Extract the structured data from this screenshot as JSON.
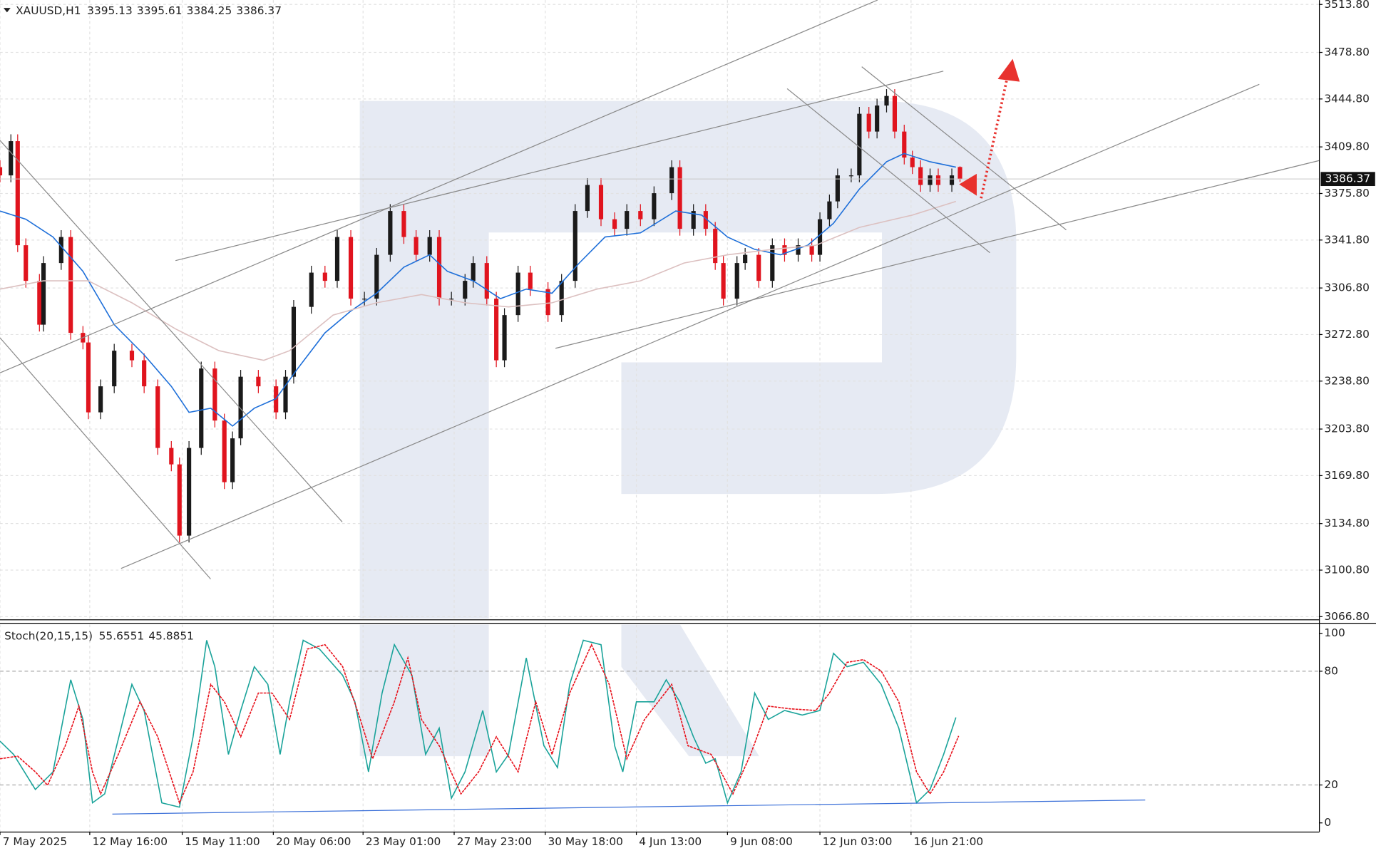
{
  "chart_data": [
    {
      "type": "candlestick",
      "title": "XAUUSD,H1",
      "xlim": [
        0,
        970
      ],
      "ylim": [
        3065.5,
        3517
      ],
      "yticks": [
        {
          "value": 3513.8,
          "label": "3513.80"
        },
        {
          "value": 3478.8,
          "label": "3478.80"
        },
        {
          "value": 3444.8,
          "label": "3444.80"
        },
        {
          "value": 3409.8,
          "label": "3409.80"
        },
        {
          "value": 3375.8,
          "label": "3375.80"
        },
        {
          "value": 3341.8,
          "label": "3341.80"
        },
        {
          "value": 3306.8,
          "label": "3306.80"
        },
        {
          "value": 3272.8,
          "label": "3272.80"
        },
        {
          "value": 3238.8,
          "label": "3238.80"
        },
        {
          "value": 3203.8,
          "label": "3203.80"
        },
        {
          "value": 3169.8,
          "label": "3169.80"
        },
        {
          "value": 3134.8,
          "label": "3134.80"
        },
        {
          "value": 3100.8,
          "label": "3100.80"
        },
        {
          "value": 3066.8,
          "label": "3066.80"
        }
      ],
      "grid": true,
      "up_color": "#1a1a1a",
      "down_color": "#e0141e",
      "x": [
        0,
        8,
        13,
        19,
        29,
        32,
        45,
        52,
        61,
        65,
        74,
        84,
        97,
        106,
        116,
        126,
        132,
        139,
        148,
        158,
        165,
        171,
        177,
        190,
        203,
        210,
        216,
        229,
        239,
        248,
        258,
        268,
        277,
        287,
        297,
        306,
        316,
        323,
        332,
        342,
        348,
        358,
        365,
        371,
        381,
        390,
        403,
        413,
        423,
        432,
        442,
        452,
        461,
        471,
        481,
        494,
        500,
        510,
        519,
        526,
        532,
        542,
        548,
        558,
        568,
        577,
        587,
        597,
        603,
        610,
        616,
        626,
        632,
        639,
        645,
        652,
        658,
        665,
        671,
        677,
        684,
        690,
        700,
        706
      ],
      "open": [
        3395,
        3389,
        3414,
        3338,
        3312,
        3280,
        3325,
        3344,
        3274,
        3267,
        3216,
        3235,
        3261,
        3254,
        3235,
        3190,
        3178,
        3126,
        3190,
        3248,
        3210,
        3165,
        3197,
        3242,
        3235,
        3216,
        3242,
        3293,
        3318,
        3312,
        3344,
        3299,
        3299,
        3331,
        3363,
        3344,
        3331,
        3344,
        3299,
        3299,
        3312,
        3325,
        3299,
        3254,
        3287,
        3318,
        3306,
        3287,
        3312,
        3363,
        3382,
        3357,
        3350,
        3363,
        3357,
        3376,
        3395,
        3350,
        3363,
        3350,
        3325,
        3299,
        3325,
        3331,
        3312,
        3338,
        3331,
        3338,
        3331,
        3357,
        3370,
        3389,
        3389,
        3434,
        3421,
        3440,
        3447,
        3421,
        3402,
        3395,
        3382,
        3389,
        3382,
        3395.13
      ],
      "high": [
        3400,
        3419,
        3419,
        3343,
        3317,
        3330,
        3349,
        3349,
        3279,
        3272,
        3240,
        3266,
        3266,
        3259,
        3240,
        3195,
        3183,
        3195,
        3253,
        3253,
        3215,
        3202,
        3247,
        3247,
        3240,
        3247,
        3298,
        3323,
        3323,
        3349,
        3349,
        3304,
        3336,
        3368,
        3368,
        3349,
        3349,
        3349,
        3304,
        3317,
        3330,
        3330,
        3304,
        3292,
        3323,
        3323,
        3311,
        3317,
        3368,
        3387,
        3387,
        3362,
        3368,
        3368,
        3381,
        3400,
        3400,
        3368,
        3368,
        3355,
        3330,
        3330,
        3336,
        3336,
        3343,
        3343,
        3343,
        3343,
        3362,
        3375,
        3394,
        3394,
        3439,
        3439,
        3445,
        3452,
        3452,
        3426,
        3407,
        3400,
        3394,
        3394,
        3394,
        3395.61
      ],
      "low": [
        3384,
        3384,
        3333,
        3307,
        3275,
        3275,
        3320,
        3269,
        3262,
        3211,
        3211,
        3230,
        3249,
        3230,
        3185,
        3173,
        3121,
        3121,
        3185,
        3205,
        3160,
        3160,
        3192,
        3230,
        3211,
        3211,
        3237,
        3288,
        3307,
        3307,
        3294,
        3294,
        3294,
        3326,
        3339,
        3326,
        3326,
        3294,
        3294,
        3294,
        3307,
        3294,
        3249,
        3249,
        3282,
        3301,
        3282,
        3282,
        3307,
        3358,
        3352,
        3345,
        3345,
        3352,
        3352,
        3371,
        3345,
        3345,
        3345,
        3320,
        3294,
        3294,
        3320,
        3307,
        3307,
        3326,
        3326,
        3326,
        3326,
        3352,
        3365,
        3384,
        3384,
        3416,
        3416,
        3435,
        3416,
        3397,
        3390,
        3377,
        3377,
        3377,
        3377,
        3384.25
      ],
      "close": [
        3389,
        3414,
        3338,
        3312,
        3280,
        3325,
        3344,
        3274,
        3267,
        3216,
        3235,
        3261,
        3254,
        3235,
        3190,
        3178,
        3126,
        3190,
        3248,
        3210,
        3165,
        3197,
        3242,
        3235,
        3216,
        3242,
        3293,
        3318,
        3312,
        3344,
        3299,
        3299,
        3331,
        3363,
        3344,
        3331,
        3344,
        3299,
        3299,
        3312,
        3325,
        3299,
        3254,
        3287,
        3318,
        3306,
        3287,
        3312,
        3363,
        3382,
        3357,
        3350,
        3363,
        3357,
        3376,
        3395,
        3350,
        3363,
        3350,
        3325,
        3299,
        3325,
        3331,
        3312,
        3338,
        3331,
        3338,
        3331,
        3357,
        3370,
        3389,
        3389,
        3434,
        3421,
        3440,
        3447,
        3421,
        3402,
        3395,
        3382,
        3389,
        3382,
        3389,
        3386.37
      ],
      "series": [
        {
          "color": "#1e6fd9",
          "x": [
            0,
            19,
            39,
            61,
            84,
            106,
            126,
            139,
            155,
            171,
            187,
            203,
            219,
            239,
            258,
            277,
            297,
            316,
            329,
            348,
            368,
            387,
            406,
            426,
            445,
            471,
            497,
            516,
            535,
            555,
            574,
            594,
            613,
            632,
            652,
            665,
            684,
            703
          ],
          "values": [
            3363,
            3357,
            3344,
            3319,
            3280,
            3258,
            3235,
            3216,
            3219,
            3206,
            3219,
            3226,
            3248,
            3274,
            3290,
            3303,
            3322,
            3331,
            3319,
            3312,
            3299,
            3306,
            3303,
            3325,
            3344,
            3347,
            3363,
            3360,
            3344,
            3335,
            3331,
            3338,
            3354,
            3379,
            3399,
            3405,
            3399,
            3395
          ]
        },
        {
          "color": "#dcc0c0",
          "x": [
            0,
            32,
            65,
            97,
            129,
            161,
            194,
            213,
            245,
            277,
            310,
            342,
            374,
            406,
            439,
            471,
            503,
            535,
            568,
            600,
            632,
            671,
            703
          ],
          "values": [
            3306,
            3312,
            3312,
            3296,
            3277,
            3261,
            3254,
            3261,
            3287,
            3296,
            3302,
            3296,
            3293,
            3296,
            3306,
            3312,
            3325,
            3331,
            3335,
            3338,
            3351,
            3360,
            3370
          ]
        }
      ]
    },
    {
      "type": "line",
      "title": "Stoch(20,15,15)",
      "xlim": [
        0,
        970
      ],
      "ylim": [
        -4.6,
        104.6
      ],
      "yticks": [
        0,
        20,
        80,
        100
      ],
      "levels": [
        20,
        80
      ],
      "xticks": [
        {
          "value": 0,
          "label": "7 May 2025"
        },
        {
          "value": 66,
          "label": "12 May 16:00"
        },
        {
          "value": 134,
          "label": "15 May 11:00"
        },
        {
          "value": 201,
          "label": "20 May 06:00"
        },
        {
          "value": 267,
          "label": "23 May 01:00"
        },
        {
          "value": 334,
          "label": "27 May 23:00"
        },
        {
          "value": 401,
          "label": "30 May 18:00"
        },
        {
          "value": 468,
          "label": "4 Jun 13:00"
        },
        {
          "value": 535,
          "label": "9 Jun 08:00"
        },
        {
          "value": 603,
          "label": "12 Jun 03:00"
        },
        {
          "value": 670,
          "label": "16 Jun 21:00"
        }
      ],
      "series": [
        {
          "color": "#1aa39a",
          "x": [
            0,
            10,
            26,
            39,
            52,
            61,
            68,
            77,
            97,
            106,
            119,
            132,
            142,
            152,
            158,
            168,
            177,
            187,
            197,
            206,
            213,
            223,
            235,
            252,
            261,
            271,
            281,
            290,
            303,
            313,
            323,
            332,
            342,
            355,
            365,
            374,
            387,
            400,
            410,
            419,
            429,
            442,
            452,
            458,
            468,
            481,
            490,
            500,
            510,
            519,
            526,
            535,
            545,
            555,
            565,
            577,
            590,
            603,
            613,
            623,
            635,
            648,
            661,
            674,
            684,
            694,
            703
          ],
          "values": [
            43.1,
            36.1,
            17.6,
            26.9,
            75.5,
            54.6,
            10.6,
            15.3,
            73.1,
            59.3,
            10.6,
            8.3,
            45.4,
            96.3,
            82.4,
            36.1,
            59.3,
            82.4,
            73.1,
            36.1,
            63.9,
            96.3,
            91.7,
            77.8,
            63.9,
            26.9,
            68.5,
            94,
            77.8,
            36.1,
            50,
            13,
            26.9,
            59.3,
            26.9,
            36.1,
            87,
            40.7,
            29.2,
            73.1,
            96.3,
            94,
            40.7,
            26.9,
            63.9,
            63.9,
            75.5,
            63.9,
            45.4,
            31.5,
            33.8,
            10.6,
            26.9,
            68.5,
            54.6,
            59.3,
            56.9,
            59.3,
            89.4,
            82.4,
            84.7,
            73.1,
            50,
            10.6,
            17.6,
            36.1,
            55.6551
          ]
        },
        {
          "color": "#e8111b",
          "dashed": true,
          "x": [
            0,
            13,
            26,
            35,
            48,
            58,
            68,
            74,
            87,
            103,
            116,
            132,
            142,
            155,
            165,
            177,
            190,
            200,
            213,
            226,
            239,
            252,
            265,
            274,
            290,
            300,
            310,
            323,
            339,
            352,
            365,
            381,
            394,
            406,
            419,
            435,
            448,
            461,
            474,
            494,
            506,
            523,
            539,
            552,
            565,
            581,
            600,
            610,
            623,
            635,
            648,
            661,
            674,
            684,
            694,
            705
          ],
          "values": [
            33.8,
            35.2,
            26.9,
            19.9,
            40.7,
            61.6,
            26.9,
            15.3,
            36.1,
            63.9,
            45.4,
            10.6,
            26.9,
            73.1,
            63.9,
            45.4,
            68.5,
            68.5,
            54.6,
            91.7,
            94,
            82.4,
            54.6,
            33.8,
            63.9,
            87,
            54.6,
            40.7,
            15.3,
            26.9,
            45.4,
            26.9,
            63.9,
            36.1,
            68.5,
            94,
            73.1,
            33.8,
            54.6,
            73.1,
            40.7,
            36.1,
            15.3,
            36.1,
            61.6,
            60.2,
            59.3,
            68.5,
            84.7,
            86.1,
            80.1,
            63.9,
            26.9,
            15.3,
            26.9,
            45.8851
          ]
        }
      ]
    }
  ]
}
